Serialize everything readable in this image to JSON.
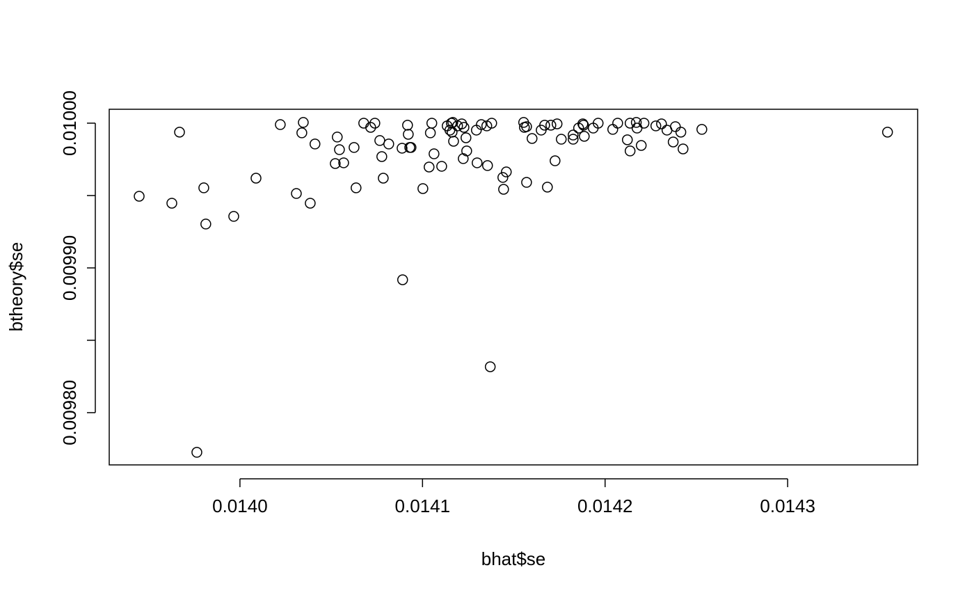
{
  "chart_data": {
    "type": "scatter",
    "x_label": "bhat$se",
    "y_label": "btheory$se",
    "xlim": [
      0.0139284,
      0.0143712
    ],
    "ylim": [
      0.0097639,
      0.0100096
    ],
    "xticks": [
      {
        "value": 0.014,
        "label": "0.0140"
      },
      {
        "value": 0.0141,
        "label": "0.0141"
      },
      {
        "value": 0.0142,
        "label": "0.0142"
      },
      {
        "value": 0.0143,
        "label": "0.0143"
      }
    ],
    "yticks": [
      {
        "value": 0.0098,
        "label": "0.00980"
      },
      {
        "value": 0.00985,
        "label": null
      },
      {
        "value": 0.0099,
        "label": "0.00990"
      },
      {
        "value": 0.00995,
        "label": null
      },
      {
        "value": 0.01,
        "label": "0.01000"
      }
    ],
    "color": "#000000",
    "x": [
      0.0139448,
      0.0139669,
      0.0139627,
      0.0139764,
      0.0139802,
      0.0139813,
      0.0139966,
      0.0140088,
      0.0140221,
      0.0140309,
      0.0140339,
      0.0140347,
      0.0140385,
      0.0140411,
      0.0140522,
      0.0140533,
      0.0140545,
      0.0140568,
      0.0140625,
      0.0140636,
      0.0140678,
      0.0140716,
      0.0140739,
      0.0140766,
      0.0140777,
      0.0140785,
      0.0140815,
      0.0140888,
      0.0140891,
      0.0140918,
      0.0140922,
      0.014093,
      0.0140937,
      0.0141002,
      0.0141036,
      0.0141043,
      0.0141051,
      0.0141063,
      0.0141105,
      0.0141135,
      0.014115,
      0.0141158,
      0.0141162,
      0.0141166,
      0.014117,
      0.0141192,
      0.0141215,
      0.0141223,
      0.0141227,
      0.0141238,
      0.0141242,
      0.0141295,
      0.0141299,
      0.0141322,
      0.0141352,
      0.0141356,
      0.0141371,
      0.0141379,
      0.014144,
      0.0141444,
      0.0141459,
      0.0141554,
      0.0141558,
      0.014157,
      0.014157,
      0.01416,
      0.014165,
      0.0141669,
      0.0141684,
      0.0141703,
      0.0141726,
      0.0141737,
      0.014176,
      0.0141825,
      0.0141825,
      0.0141855,
      0.0141878,
      0.0141882,
      0.0141886,
      0.0141935,
      0.0141962,
      0.0142042,
      0.0142069,
      0.0142122,
      0.0142137,
      0.0142137,
      0.0142171,
      0.0142175,
      0.0142198,
      0.0142213,
      0.0142278,
      0.0142309,
      0.0142339,
      0.0142373,
      0.0142385,
      0.0142415,
      0.0142427,
      0.014253,
      0.0143547
    ],
    "y": [
      0.0099495,
      0.0099938,
      0.0099447,
      0.0097726,
      0.0099553,
      0.0099303,
      0.0099356,
      0.009962,
      0.009999,
      0.0099514,
      0.0099933,
      0.0100005,
      0.0099447,
      0.0099856,
      0.0099721,
      0.0099904,
      0.0099817,
      0.0099726,
      0.0099832,
      0.0099553,
      0.01,
      0.0099971,
      0.01,
      0.009988,
      0.0099769,
      0.009962,
      0.0099856,
      0.0099827,
      0.0098918,
      0.0099986,
      0.0099923,
      0.0099832,
      0.0099832,
      0.0099548,
      0.0099697,
      0.0099933,
      0.01,
      0.0099788,
      0.0099702,
      0.0099981,
      0.0099952,
      0.01,
      0.0099938,
      0.0100005,
      0.0099875,
      0.0099981,
      0.0099995,
      0.0099755,
      0.0099971,
      0.0099899,
      0.0099808,
      0.0099952,
      0.0099726,
      0.009999,
      0.0099981,
      0.0099707,
      0.0098317,
      0.01,
      0.0099625,
      0.0099543,
      0.0099663,
      0.0100005,
      0.0099971,
      0.0099976,
      0.0099591,
      0.0099894,
      0.0099952,
      0.0099986,
      0.0099558,
      0.0099986,
      0.009974,
      0.0099995,
      0.0099889,
      0.0099918,
      0.0099889,
      0.0099966,
      0.0099995,
      0.0099986,
      0.0099909,
      0.0099966,
      0.01,
      0.0099957,
      0.01,
      0.0099885,
      0.01,
      0.0099808,
      0.0100005,
      0.0099966,
      0.0099846,
      0.01,
      0.0099981,
      0.0099995,
      0.0099952,
      0.009987,
      0.0099976,
      0.0099938,
      0.0099822,
      0.0099957,
      0.0099938
    ]
  }
}
